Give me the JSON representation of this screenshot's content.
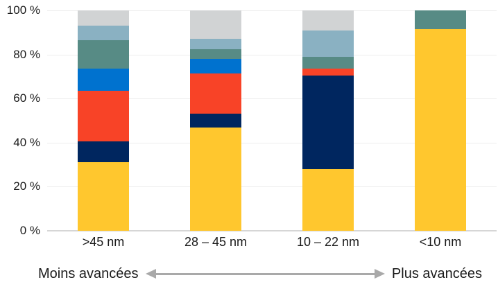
{
  "chart_data": {
    "type": "bar",
    "stacked": true,
    "unit": "%",
    "title": "",
    "xlabel": "",
    "ylabel": "",
    "ylim": [
      0,
      100
    ],
    "grid": "horizontal",
    "legend": false,
    "categories": [
      ">45 nm",
      "28 – 45 nm",
      "10 – 22 nm",
      "<10 nm"
    ],
    "series": [
      {
        "name": "yellow-segment",
        "color": "#FFC72E",
        "values": [
          31,
          47,
          28,
          91.5
        ]
      },
      {
        "name": "navy-segment",
        "color": "#00265F",
        "values": [
          9.5,
          6,
          42.5,
          0
        ]
      },
      {
        "name": "red-segment",
        "color": "#F84327",
        "values": [
          23,
          18.5,
          3,
          0
        ]
      },
      {
        "name": "blue-segment",
        "color": "#0072CF",
        "values": [
          10,
          6.5,
          0,
          0
        ]
      },
      {
        "name": "teal-segment",
        "color": "#578B85",
        "values": [
          13,
          4.5,
          5.5,
          8.5
        ]
      },
      {
        "name": "steel-blue-segment",
        "color": "#8AB1C2",
        "values": [
          6.5,
          4.5,
          12,
          0
        ]
      },
      {
        "name": "light-gray-segment",
        "color": "#D1D3D4",
        "values": [
          7,
          13,
          9,
          0
        ]
      }
    ],
    "y_ticks": [
      {
        "value": 0,
        "label": "0 %"
      },
      {
        "value": 20,
        "label": "20 %"
      },
      {
        "value": 40,
        "label": "40 %"
      },
      {
        "value": 60,
        "label": "60 %"
      },
      {
        "value": 80,
        "label": "80 %"
      },
      {
        "value": 100,
        "label": "100 %"
      }
    ]
  },
  "annotation": {
    "left_label": "Moins avancées",
    "right_label": "Plus avancées",
    "arrow": "double-headed",
    "arrow_color": "#A9A9A9"
  },
  "colors": {
    "background": "#FFFFFF",
    "gridline": "#EDEDED",
    "axis_line": "#D6D6D6",
    "text": "#1A1A1A"
  }
}
